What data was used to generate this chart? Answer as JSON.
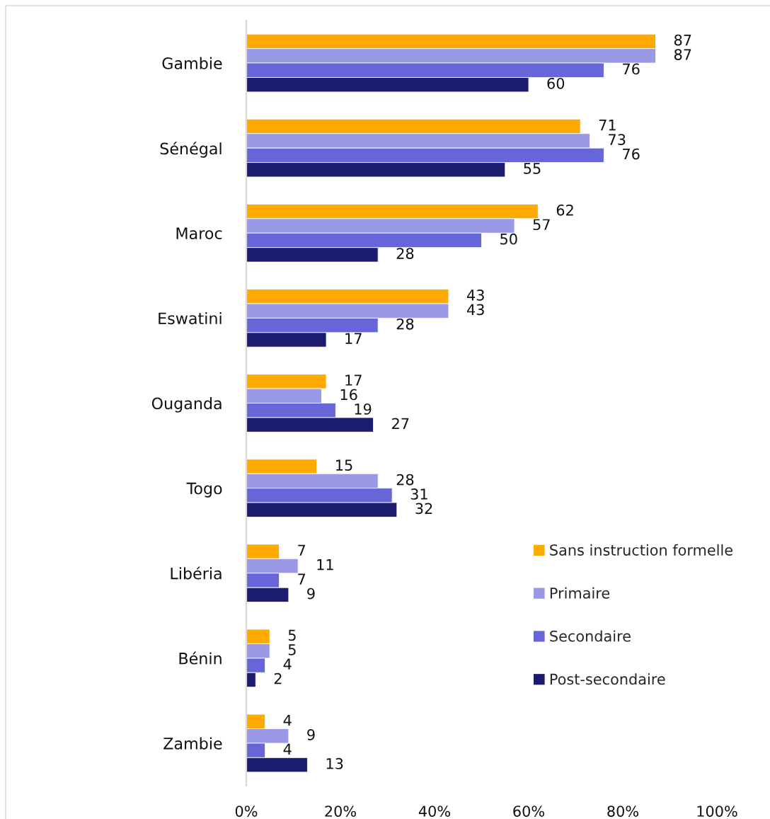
{
  "chart_data": {
    "type": "bar",
    "orientation": "horizontal",
    "categories": [
      "Gambie",
      "Sénégal",
      "Maroc",
      "Eswatini",
      "Ouganda",
      "Togo",
      "Libéria",
      "Bénin",
      "Zambie"
    ],
    "series": [
      {
        "name": "Sans instruction formelle",
        "color": "#ffaa00",
        "values": [
          87,
          71,
          62,
          43,
          17,
          15,
          7,
          5,
          4
        ]
      },
      {
        "name": "Primaire",
        "color": "#9999e6",
        "values": [
          87,
          73,
          57,
          43,
          16,
          28,
          11,
          5,
          9
        ]
      },
      {
        "name": "Secondaire",
        "color": "#6666d9",
        "values": [
          76,
          76,
          50,
          28,
          19,
          31,
          7,
          4,
          4
        ]
      },
      {
        "name": "Post-secondaire",
        "color": "#1b1b6f",
        "values": [
          60,
          55,
          28,
          17,
          27,
          32,
          9,
          2,
          13
        ]
      }
    ],
    "xlim": [
      0,
      100
    ],
    "xticks": [
      {
        "value": 0,
        "label": "0%"
      },
      {
        "value": 20,
        "label": "20%"
      },
      {
        "value": 40,
        "label": "40%"
      },
      {
        "value": 60,
        "label": "60%"
      },
      {
        "value": 80,
        "label": "80%"
      },
      {
        "value": 100,
        "label": "100%"
      }
    ],
    "data_labels": true,
    "legend": "lower right",
    "grid": false
  }
}
